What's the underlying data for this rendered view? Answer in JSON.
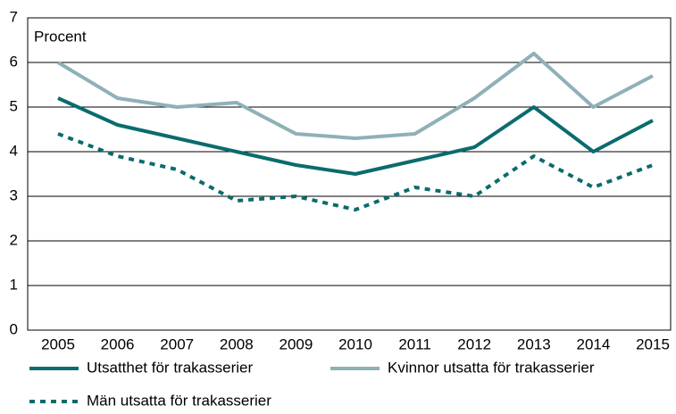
{
  "chart_data": {
    "type": "line",
    "y_label": "Procent",
    "categories": [
      "2005",
      "2006",
      "2007",
      "2008",
      "2009",
      "2010",
      "2011",
      "2012",
      "2013",
      "2014",
      "2015"
    ],
    "ylim": [
      0,
      7
    ],
    "yticks": [
      0,
      1,
      2,
      3,
      4,
      5,
      6,
      7
    ],
    "grid": true,
    "series": [
      {
        "name": "Utsatthet för trakasserier",
        "color": "#0b6b6e",
        "style": "solid",
        "values": [
          5.2,
          4.6,
          4.3,
          4.0,
          3.7,
          3.5,
          3.8,
          4.1,
          5.0,
          4.0,
          4.7
        ]
      },
      {
        "name": "Kvinnor utsatta för trakasserier",
        "color": "#8fb0b7",
        "style": "solid",
        "values": [
          6.0,
          5.2,
          5.0,
          5.1,
          4.4,
          4.3,
          4.4,
          5.2,
          6.2,
          5.0,
          5.7
        ]
      },
      {
        "name": "Män utsatta för trakasserier",
        "color": "#0b6b6e",
        "style": "dotted",
        "values": [
          4.4,
          3.9,
          3.6,
          2.9,
          3.0,
          2.7,
          3.2,
          3.0,
          3.9,
          3.2,
          3.7
        ]
      }
    ]
  }
}
